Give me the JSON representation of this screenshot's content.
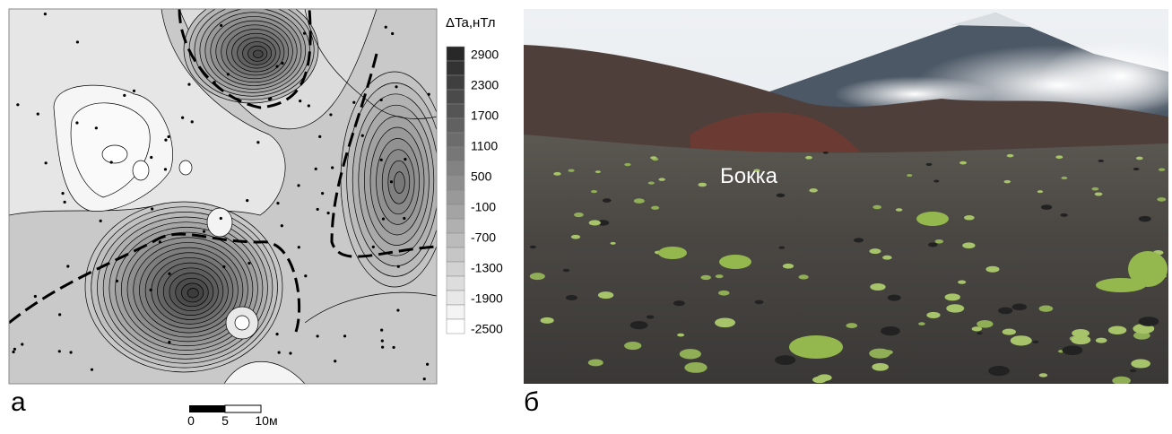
{
  "panel_a": {
    "label": "а",
    "colorbar_title": "ΔTa,нТл",
    "colorbar_labels": [
      "2900",
      "2300",
      "1700",
      "1100",
      "500",
      "-100",
      "-700",
      "-1300",
      "-1900",
      "-2500"
    ],
    "scale_bar_labels": [
      "0",
      "5",
      "10м"
    ]
  },
  "panel_b": {
    "label": "б",
    "annotation": "Бокка"
  }
}
